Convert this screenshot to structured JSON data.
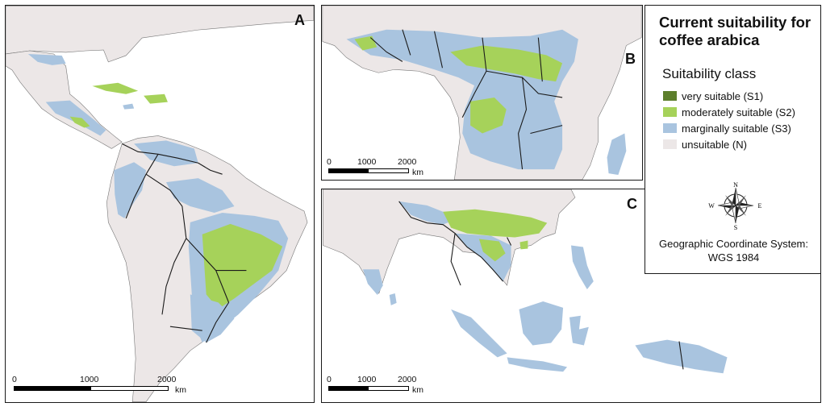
{
  "colors": {
    "very_suitable": "#5d7f2c",
    "moderately_suitable": "#a6d25a",
    "marginally_suitable": "#a9c4df",
    "unsuitable": "#ece7e7",
    "water": "#ffffff",
    "border": "#1a1a1a"
  },
  "panels": {
    "a": {
      "letter": "A",
      "scale": {
        "ticks": [
          "0",
          "1000",
          "2000"
        ],
        "unit": "km"
      }
    },
    "b": {
      "letter": "B",
      "scale": {
        "ticks": [
          "0",
          "1000",
          "2000"
        ],
        "unit": "km"
      }
    },
    "c": {
      "letter": "C",
      "scale": {
        "ticks": [
          "0",
          "1000",
          "2000"
        ],
        "unit": "km"
      }
    }
  },
  "legend": {
    "title": "Current suitability for coffee arabica",
    "subtitle": "Suitability class",
    "items": [
      {
        "label": "very suitable (S1)"
      },
      {
        "label": "moderately suitable (S2)"
      },
      {
        "label": "marginally suitable (S3)"
      },
      {
        "label": "unsuitable (N)"
      }
    ],
    "compass": {
      "n": "N",
      "s": "S",
      "e": "E",
      "w": "W"
    },
    "coordinate_system": "Geographic Coordinate System: WGS 1984"
  }
}
